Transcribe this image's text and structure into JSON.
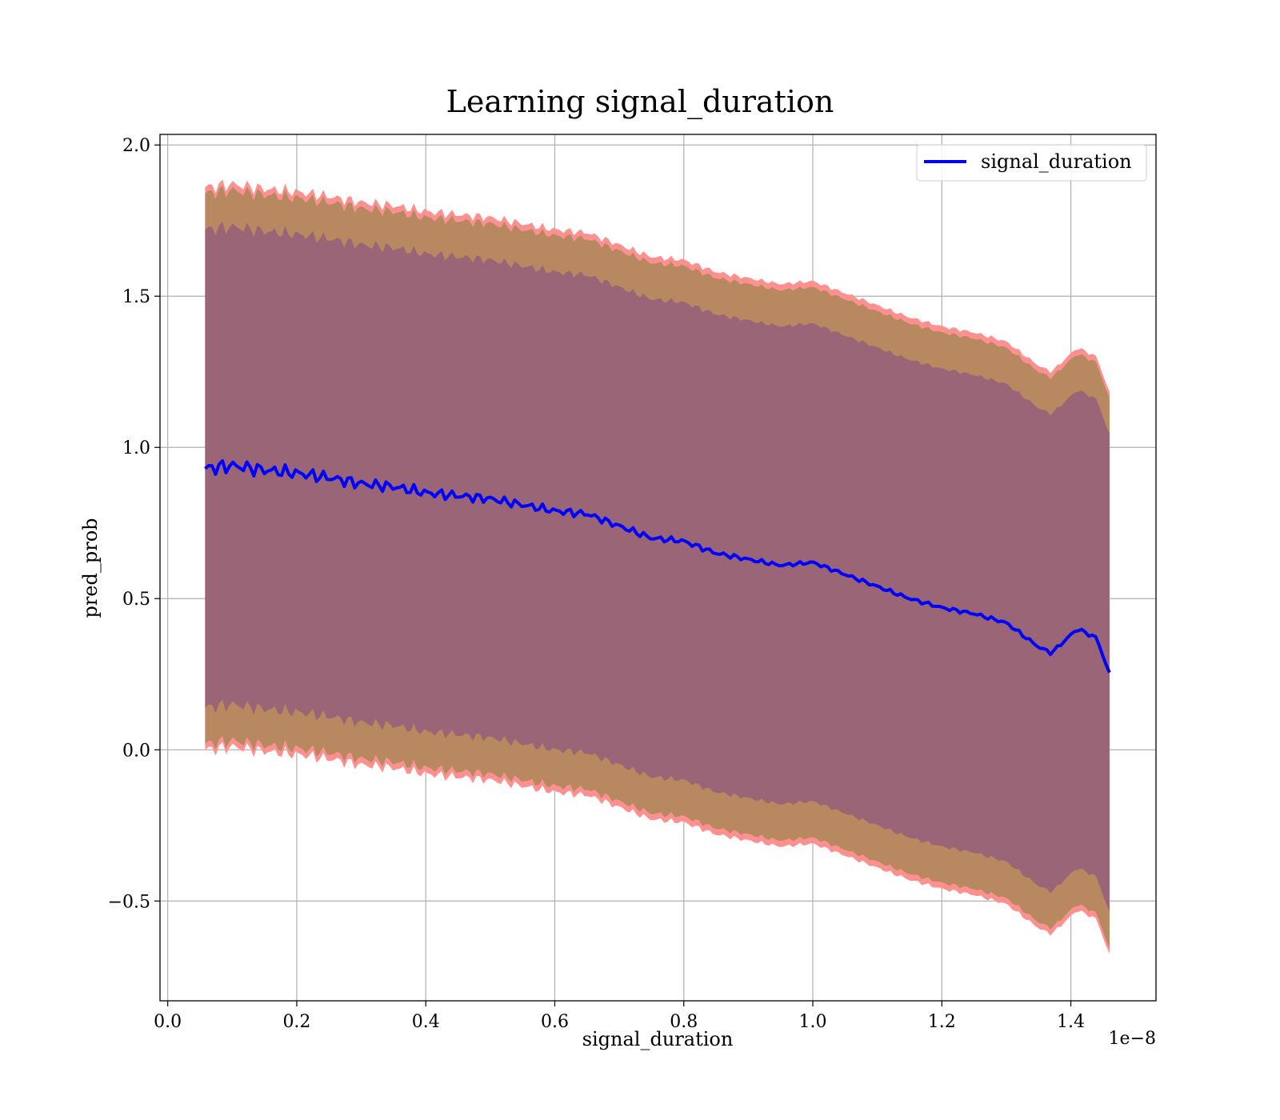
{
  "chart_data": {
    "type": "line",
    "title": "Learning signal_duration",
    "xlabel": "signal_duration",
    "ylabel": "pred_prob",
    "x_offset_label": "1e−8",
    "xlim": [
      -0.012,
      1.532
    ],
    "ylim": [
      -0.83,
      2.035
    ],
    "x_ticks": [
      0.0,
      0.2,
      0.4,
      0.6,
      0.8,
      1.0,
      1.2,
      1.4
    ],
    "x_tick_labels": [
      "0.0",
      "0.2",
      "0.4",
      "0.6",
      "0.8",
      "1.0",
      "1.2",
      "1.4"
    ],
    "y_ticks": [
      -0.5,
      0.0,
      0.5,
      1.0,
      1.5,
      2.0
    ],
    "y_tick_labels": [
      "−0.5",
      "0.0",
      "0.5",
      "1.0",
      "1.5",
      "2.0"
    ],
    "grid": true,
    "legend_position": "top-right",
    "series": [
      {
        "name": "signal_duration",
        "color": "#0000ff",
        "x": [
          0.058,
          0.1,
          0.15,
          0.2,
          0.25,
          0.3,
          0.35,
          0.4,
          0.45,
          0.5,
          0.55,
          0.6,
          0.65,
          0.7,
          0.75,
          0.8,
          0.85,
          0.9,
          0.95,
          1.0,
          1.05,
          1.1,
          1.15,
          1.2,
          1.25,
          1.3,
          1.35,
          1.37,
          1.41,
          1.44,
          1.46
        ],
        "y": [
          0.93,
          0.94,
          0.925,
          0.915,
          0.9,
          0.88,
          0.87,
          0.85,
          0.84,
          0.83,
          0.81,
          0.79,
          0.78,
          0.74,
          0.7,
          0.69,
          0.65,
          0.63,
          0.61,
          0.62,
          0.58,
          0.54,
          0.5,
          0.47,
          0.45,
          0.42,
          0.34,
          0.32,
          0.4,
          0.37,
          0.25
        ]
      }
    ],
    "bands": [
      {
        "label_role": "outer",
        "color": "#ff9090",
        "offset": 0.93
      },
      {
        "label_role": "middle",
        "color": "#b88860",
        "offset": 0.91
      },
      {
        "label_role": "inner",
        "color": "#9a6577",
        "offset": 0.79
      }
    ]
  }
}
